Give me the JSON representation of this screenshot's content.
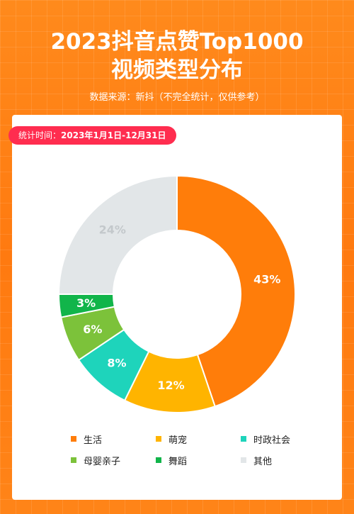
{
  "header": {
    "title_line1": "2023抖音点赞Top1000",
    "title_line2": "视频类型分布",
    "source": "数据来源：新抖（不完全统计，仅供参考）"
  },
  "period": {
    "label": "统计时间：",
    "range": "2023年1月1日-12月31日"
  },
  "chart_data": {
    "type": "pie",
    "donut": true,
    "categories": [
      "生活",
      "萌宠",
      "时政社会",
      "母婴亲子",
      "舞蹈",
      "其他"
    ],
    "values": [
      43,
      12,
      8,
      6,
      3,
      24
    ],
    "value_labels": [
      "43%",
      "12%",
      "8%",
      "6%",
      "3%",
      "24%"
    ],
    "colors": [
      "#ff7d0a",
      "#ffb400",
      "#1ed4bb",
      "#7cc23a",
      "#11b54a",
      "#e2e6e8"
    ],
    "label_colors": [
      "#ffffff",
      "#ffffff",
      "#ffffff",
      "#ffffff",
      "#ffffff",
      "#c3c8cb"
    ],
    "legend_position": "bottom"
  }
}
